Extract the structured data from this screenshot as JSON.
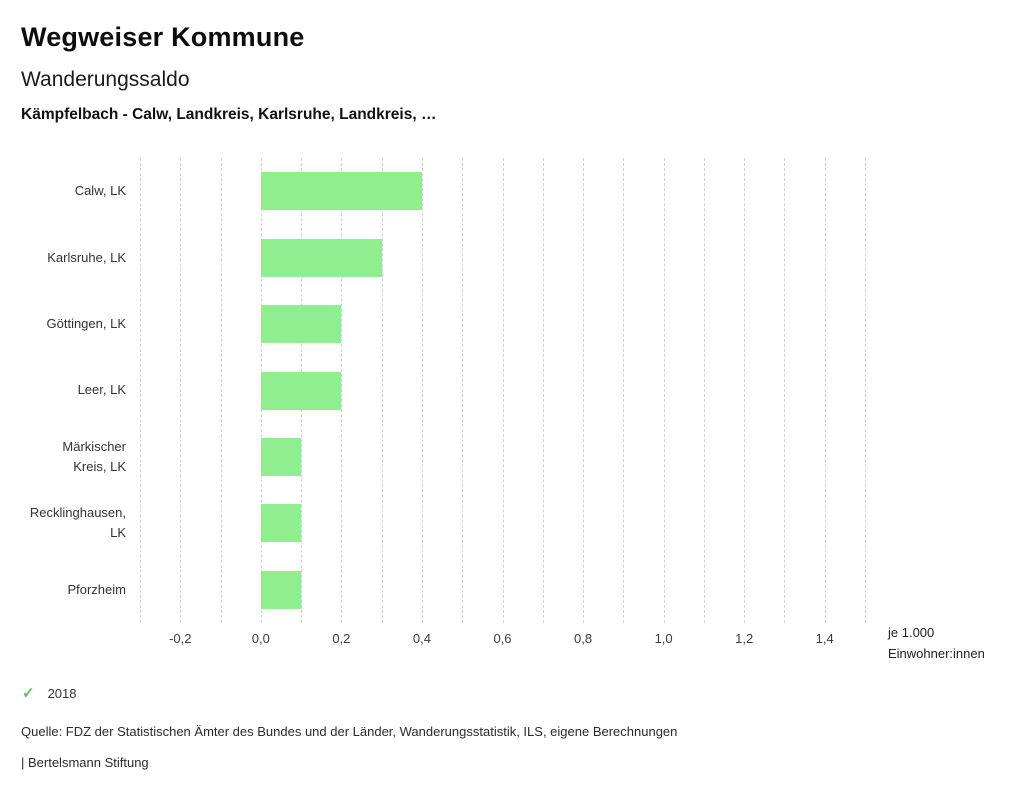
{
  "header": {
    "title": "Wegweiser Kommune",
    "subtitle": "Wanderungssaldo",
    "selection": "Kämpfelbach - Calw, Landkreis, Karlsruhe, Landkreis, …"
  },
  "chart_data": {
    "type": "bar",
    "orientation": "horizontal",
    "title": "Wanderungssaldo",
    "categories": [
      "Calw, LK",
      "Karlsruhe, LK",
      "Göttingen, LK",
      "Leer, LK",
      "Märkischer Kreis, LK",
      "Recklinghausen, LK",
      "Pforzheim"
    ],
    "series": [
      {
        "name": "2018",
        "values": [
          0.4,
          0.3,
          0.2,
          0.2,
          0.1,
          0.1,
          0.1
        ]
      }
    ],
    "bar_color": "#90ee90",
    "xlim": [
      -0.3,
      1.5
    ],
    "minor_grid_step": 0.1,
    "x_ticks": [
      -0.2,
      0.0,
      0.2,
      0.4,
      0.6,
      0.8,
      1.0,
      1.2,
      1.4
    ],
    "x_tick_labels": [
      "-0,2",
      "0,0",
      "0,2",
      "0,4",
      "0,6",
      "0,8",
      "1,0",
      "1,2",
      "1,4"
    ],
    "grid": true,
    "legend_position": "bottom-left",
    "unit_label_line1": "je 1.000",
    "unit_label_line2": "Einwohner:innen"
  },
  "legend": {
    "year": "2018",
    "check_icon": "✓",
    "check_color": "#5cc25c"
  },
  "footer": {
    "source": "Quelle: FDZ der Statistischen Ämter des Bundes und der Länder, Wanderungsstatistik, ILS, eigene Berechnungen",
    "branding": "| Bertelsmann Stiftung"
  }
}
